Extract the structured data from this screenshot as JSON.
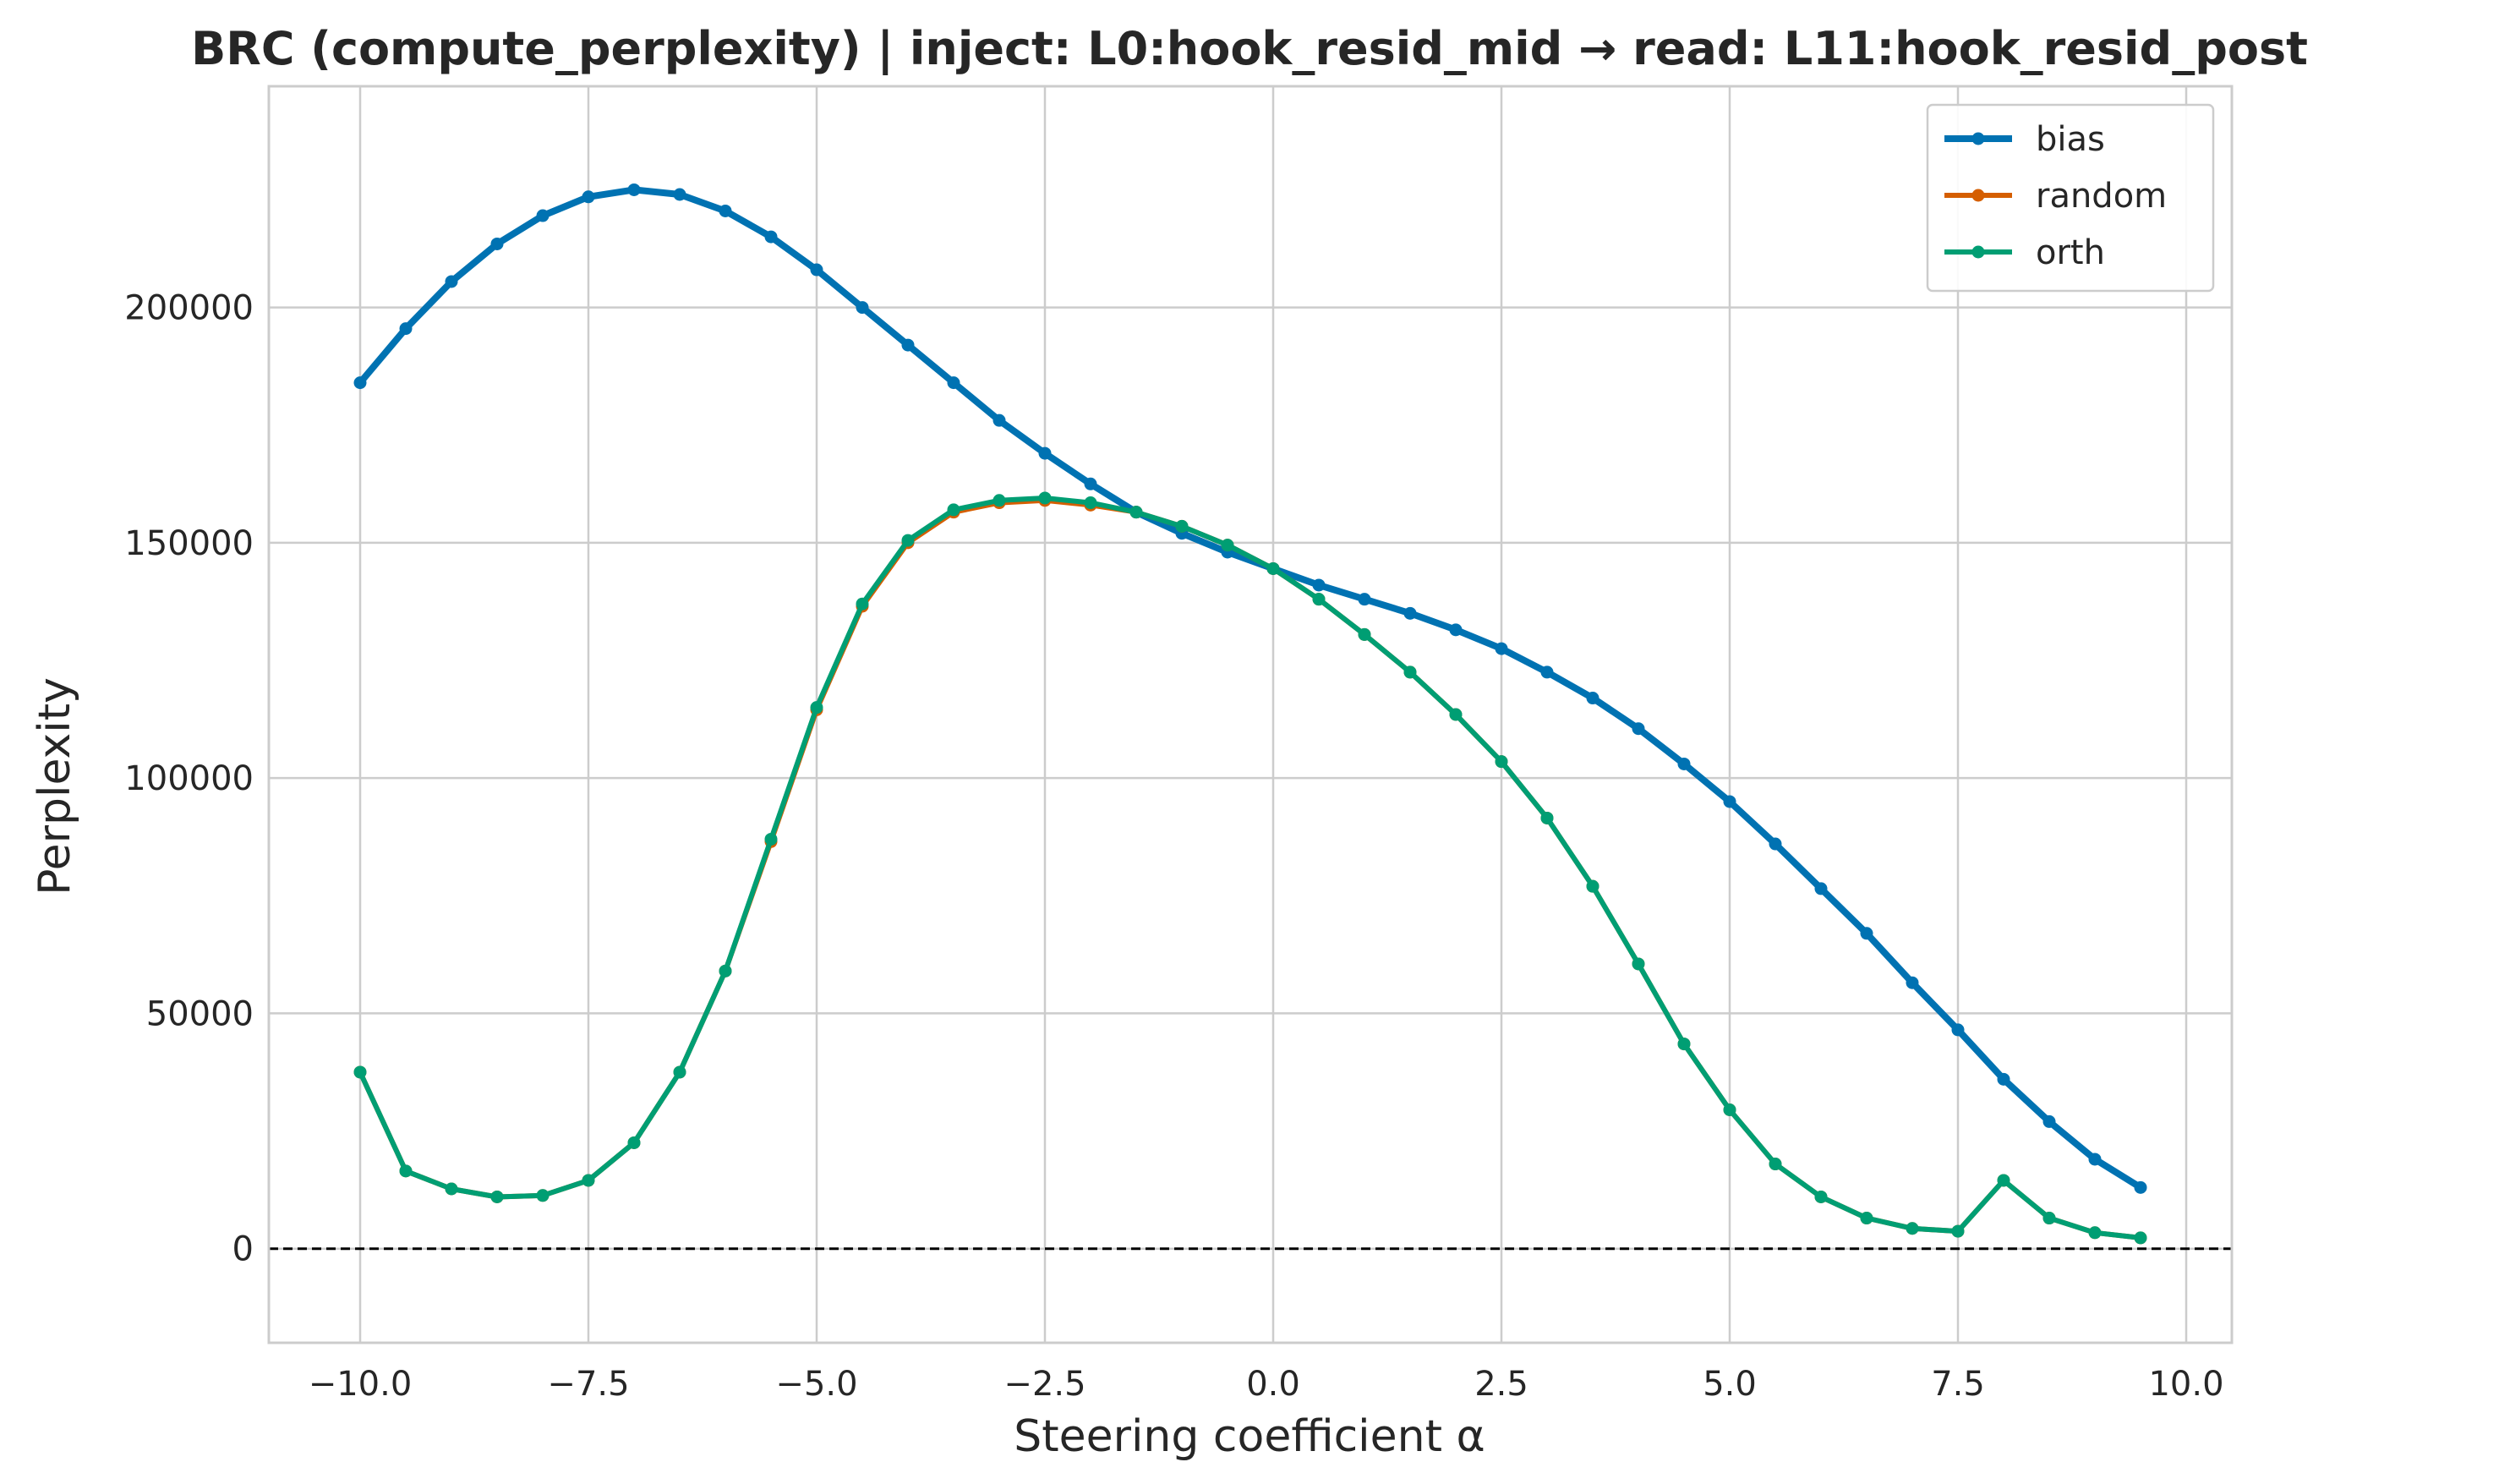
{
  "chart_data": {
    "type": "line",
    "title": "BRC (compute_perplexity) | inject: L0:hook_resid_mid → read: L11:hook_resid_post",
    "xlabel": "Steering coefficient α",
    "ylabel": "Perplexity",
    "xlim": [
      -11.0,
      10.5
    ],
    "ylim": [
      -20000,
      247000
    ],
    "xticks": [
      -10.0,
      -7.5,
      -5.0,
      -2.5,
      0.0,
      2.5,
      5.0,
      7.5,
      10.0
    ],
    "xtick_labels": [
      "−10.0",
      "−7.5",
      "−5.0",
      "−2.5",
      "0.0",
      "2.5",
      "5.0",
      "7.5",
      "10.0"
    ],
    "yticks": [
      0,
      50000,
      100000,
      150000,
      200000
    ],
    "ytick_labels": [
      "0",
      "50000",
      "100000",
      "150000",
      "200000"
    ],
    "grid": true,
    "legend_position": "top-right",
    "reference_line": {
      "y": 0,
      "style": "dashed",
      "color": "#000000"
    },
    "x": [
      -10.0,
      -9.5,
      -9.0,
      -8.5,
      -8.0,
      -7.5,
      -7.0,
      -6.5,
      -6.0,
      -5.5,
      -5.0,
      -4.5,
      -4.0,
      -3.5,
      -3.0,
      -2.5,
      -2.0,
      -1.5,
      -1.0,
      -0.5,
      0.0,
      0.5,
      1.0,
      1.5,
      2.0,
      2.5,
      3.0,
      3.5,
      4.0,
      4.5,
      5.0,
      5.5,
      6.0,
      6.5,
      7.0,
      7.5,
      8.0,
      8.5,
      9.0,
      9.5
    ],
    "series": [
      {
        "name": "bias",
        "color": "#0072B2",
        "line_width": 8,
        "values": [
          184000,
          195500,
          205500,
          213500,
          219500,
          223500,
          225000,
          224000,
          220500,
          215000,
          208000,
          200000,
          192000,
          184000,
          176000,
          169000,
          162500,
          156500,
          152000,
          148000,
          144500,
          141000,
          138000,
          135000,
          131500,
          127500,
          122500,
          117000,
          110500,
          103000,
          95000,
          86000,
          76500,
          67000,
          56500,
          46500,
          36000,
          27000,
          19000,
          13000
        ]
      },
      {
        "name": "random",
        "color": "#D55E00",
        "line_width": 6,
        "values": [
          37500,
          16500,
          12700,
          11000,
          11300,
          14500,
          22500,
          37500,
          59000,
          86500,
          114500,
          136500,
          150000,
          156500,
          158500,
          159000,
          158000,
          156500,
          153500,
          149500,
          144500,
          138000,
          130500,
          122500,
          113500,
          103500,
          91500,
          77000,
          60500,
          43500,
          29500,
          18000,
          11000,
          6500,
          4300,
          3700,
          14500,
          6500,
          3400,
          2300
        ]
      },
      {
        "name": "orth",
        "color": "#009E73",
        "line_width": 6,
        "values": [
          37500,
          16500,
          12700,
          11000,
          11300,
          14500,
          22500,
          37500,
          59000,
          87000,
          115000,
          137000,
          150500,
          157000,
          159000,
          159500,
          158500,
          156500,
          153500,
          149500,
          144500,
          138000,
          130500,
          122500,
          113500,
          103500,
          91500,
          77000,
          60500,
          43500,
          29500,
          18000,
          11000,
          6500,
          4300,
          3700,
          14500,
          6500,
          3400,
          2300
        ]
      }
    ]
  }
}
